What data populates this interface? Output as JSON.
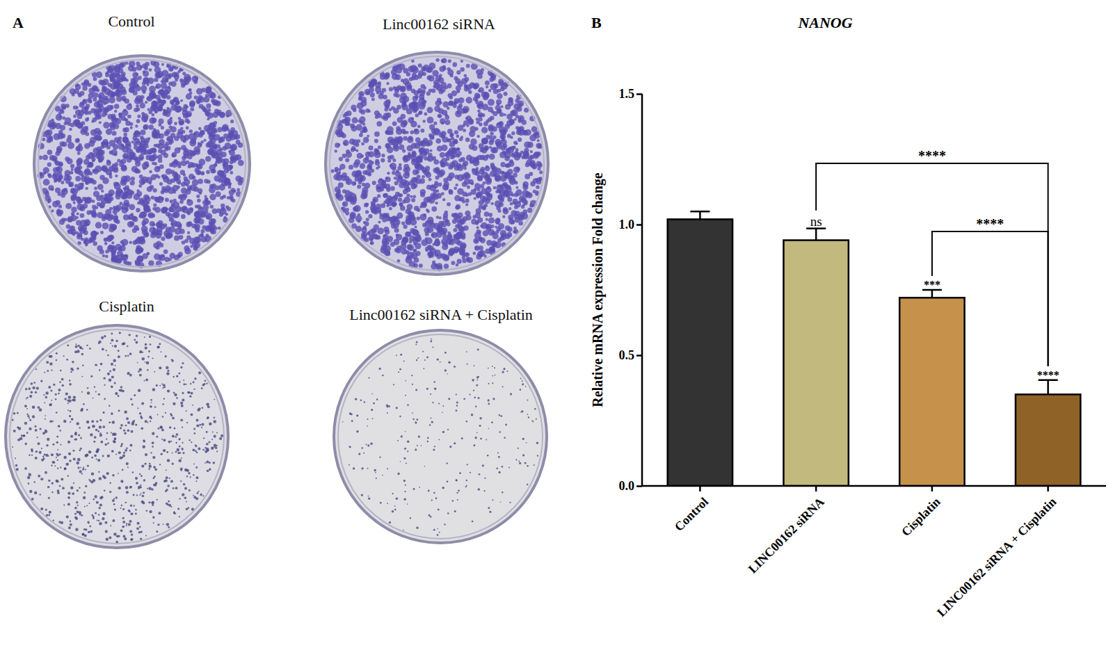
{
  "panel_labels": [
    "A",
    "B"
  ],
  "panel_a": {
    "titles": [
      "Control",
      "Linc00162 siRNA",
      "Cisplatin",
      "Linc00162 siRNA + Cisplatin"
    ]
  },
  "chart_data": {
    "type": "bar",
    "title": "NANOG",
    "y_label": "Relative mRNA expression Fold change",
    "categories": [
      "Control",
      "LINC00162 siRNA",
      "Cisplatin",
      "LINC00162 siRNA + Cisplatin"
    ],
    "values": [
      1.02,
      0.94,
      0.72,
      0.35
    ],
    "errors": [
      0.03,
      0.045,
      0.03,
      0.055
    ],
    "colors": [
      "#333333",
      "#c2b97e",
      "#c6924b",
      "#8f6328"
    ],
    "ylim": [
      0,
      1.5
    ],
    "yticks": [
      {
        "value": 0,
        "label": "0.0"
      },
      {
        "value": 0.5,
        "label": "0.5"
      },
      {
        "value": 1,
        "label": "1.0"
      },
      {
        "value": 1.5,
        "label": "1.5"
      }
    ],
    "significance": [
      null,
      "ns",
      "***",
      "****"
    ],
    "brackets": [
      {
        "from": 1,
        "to": 3,
        "label": "****"
      },
      {
        "from": 2,
        "to": 3,
        "label": "****"
      }
    ]
  }
}
